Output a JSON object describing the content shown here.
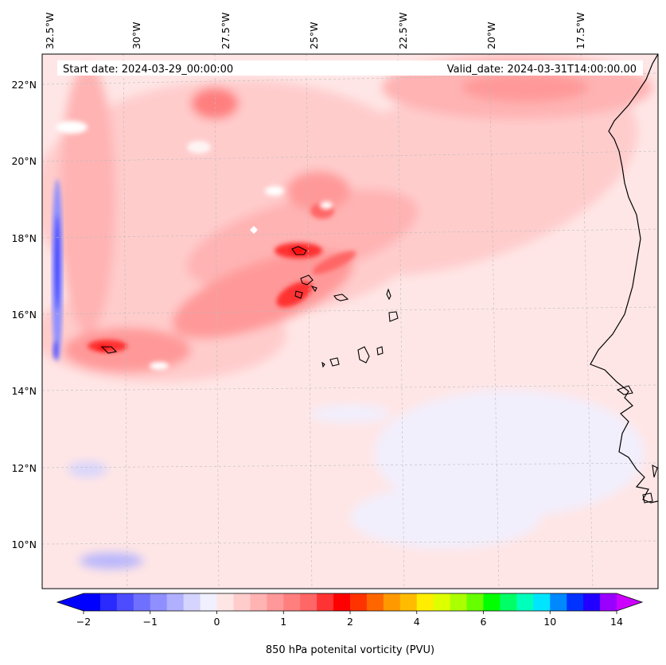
{
  "map": {
    "start_date": "Start date: 2024-03-29_00:00:00",
    "valid_date": "Valid_date: 2024-03-31T14:00:00.00",
    "lon_labels": [
      "32.5°W",
      "30°W",
      "27.5°W",
      "25°W",
      "22.5°W",
      "20°W",
      "17.5°W"
    ],
    "lat_labels": [
      "22°N",
      "20°N",
      "18°N",
      "16°N",
      "14°N",
      "12°N",
      "10°N"
    ],
    "colors": {
      "land_outline": "#000000",
      "grid": "#bbbbbb",
      "background_field": "#ffe6e6"
    }
  },
  "colorbar": {
    "label": "850 hPa potenital vorticity (PVU)",
    "tick_labels": [
      "−2",
      "−1",
      "0",
      "1",
      "2",
      "4",
      "6",
      "10",
      "14"
    ],
    "colors": [
      "#0000ff",
      "#2a2aff",
      "#4d4dff",
      "#7070ff",
      "#8f8fff",
      "#b0b0ff",
      "#d4d4ff",
      "#f0f0ff",
      "#ffe6e6",
      "#ffcccc",
      "#ffb3b3",
      "#ff9999",
      "#ff7f7f",
      "#ff6666",
      "#ff3333",
      "#ff0000",
      "#ff3300",
      "#ff6600",
      "#ff9900",
      "#ffbb00",
      "#ffee00",
      "#ddff00",
      "#aaff00",
      "#66ff00",
      "#00ff00",
      "#00ff66",
      "#00ffbb",
      "#00e5ff",
      "#0088ff",
      "#0033ff",
      "#2200ff",
      "#9900ff"
    ],
    "extend_low": "#0000ff",
    "extend_high": "#cc00ff"
  }
}
